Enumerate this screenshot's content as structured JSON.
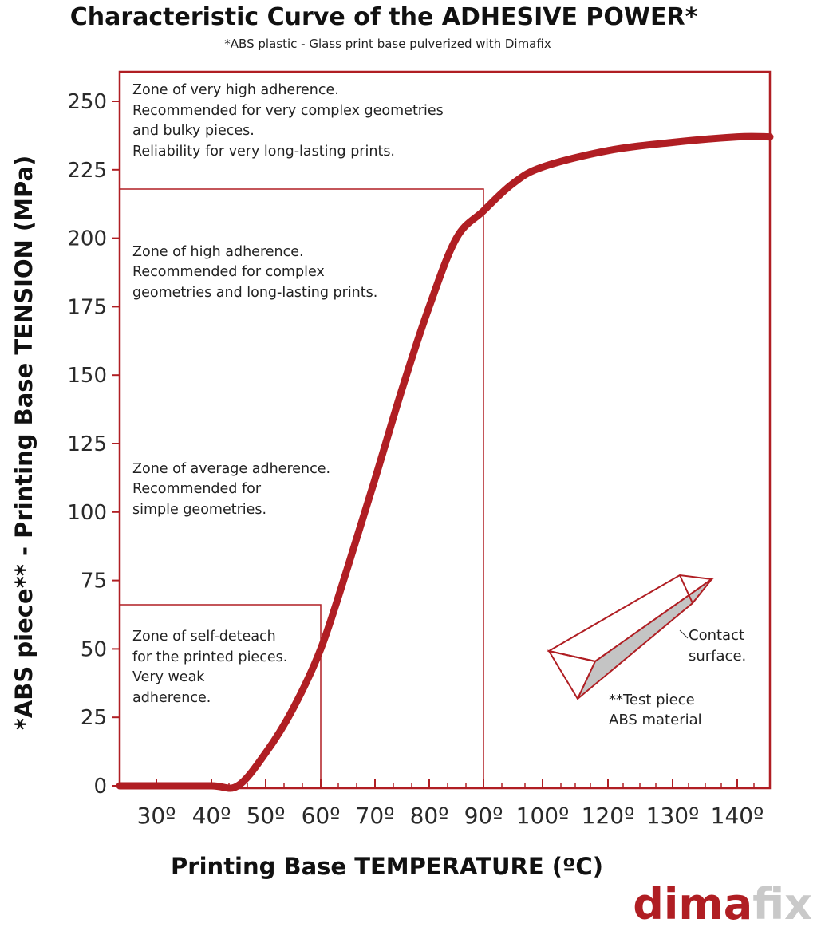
{
  "chart_data": {
    "type": "line",
    "title": "Characteristic Curve of the ADHESIVE POWER*",
    "subtitle": "*ABS plastic - Glass print base pulverized with Dimafix",
    "xlabel": "Printing Base TEMPERATURE (ºC)",
    "ylabel": "*ABS piece** - Printing Base TENSION (MPa)",
    "x_tick_labels": [
      "30º",
      "40º",
      "50º",
      "60º",
      "70º",
      "80º",
      "90º",
      "100º",
      "120º",
      "130º",
      "140º"
    ],
    "y_tick_labels": [
      "0",
      "25",
      "50",
      "75",
      "100",
      "125",
      "150",
      "175",
      "200",
      "225",
      "250"
    ],
    "y_ticks": [
      0,
      25,
      50,
      75,
      100,
      125,
      150,
      175,
      200,
      225,
      250
    ],
    "ylim": [
      0,
      260
    ],
    "color": "#b01e23",
    "series": [
      {
        "x": [
          "25º",
          "30º",
          "40º",
          "45º",
          "50º",
          "55º",
          "60º",
          "65º",
          "70º",
          "75º",
          "80º",
          "85º",
          "90º",
          "95º",
          "100º",
          "120º",
          "130º",
          "140º",
          "145º"
        ],
        "y": [
          0,
          0,
          0,
          0,
          12,
          28,
          50,
          80,
          112,
          145,
          175,
          200,
          210,
          220,
          226,
          232,
          235,
          237,
          237
        ]
      }
    ],
    "zones": [
      {
        "lines": [
          "Zone of very high adherence.",
          "Recommended for very complex geometries",
          "and bulky pieces.",
          "Reliability for very long-lasting prints."
        ]
      },
      {
        "lines": [
          "Zone of high adherence.",
          "Recommended for complex",
          "geometries and long-lasting prints."
        ]
      },
      {
        "lines": [
          "Zone of average adherence.",
          "Recommended for",
          "simple geometries."
        ]
      },
      {
        "lines": [
          "Zone of self-deteach",
          "for the printed pieces.",
          "Very weak",
          "adherence."
        ]
      }
    ],
    "zone_boundaries": [
      {
        "x": "60º",
        "y": 67
      },
      {
        "x": "90º",
        "y": 216
      }
    ],
    "test_piece": {
      "contact_label": [
        "Contact",
        "surface."
      ],
      "piece_label": [
        "**Test piece",
        "ABS material"
      ]
    }
  },
  "logo": {
    "part1": "dima",
    "part2": "fix"
  }
}
